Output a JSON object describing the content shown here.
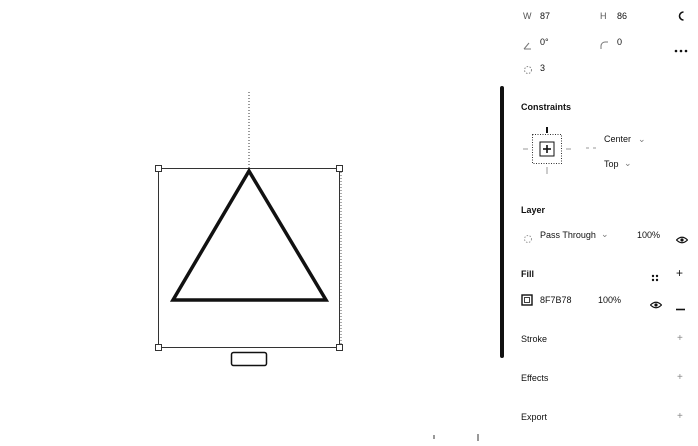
{
  "panel": {
    "dims": {
      "w_label": "W",
      "w_value": "87",
      "h_label": "H",
      "h_value": "86",
      "rotation_value": "0°",
      "radius_value": "0",
      "points_value": "3"
    },
    "constraints": {
      "title": "Constraints",
      "horizontal": "Center",
      "vertical": "Top"
    },
    "layer": {
      "title": "Layer",
      "blend_mode": "Pass Through",
      "opacity": "100%"
    },
    "fill": {
      "title": "Fill",
      "hex": "8F7B78",
      "opacity": "100%"
    },
    "stroke": {
      "title": "Stroke"
    },
    "effects": {
      "title": "Effects"
    },
    "export": {
      "title": "Export"
    }
  },
  "colors": {
    "accent": "#111111"
  }
}
